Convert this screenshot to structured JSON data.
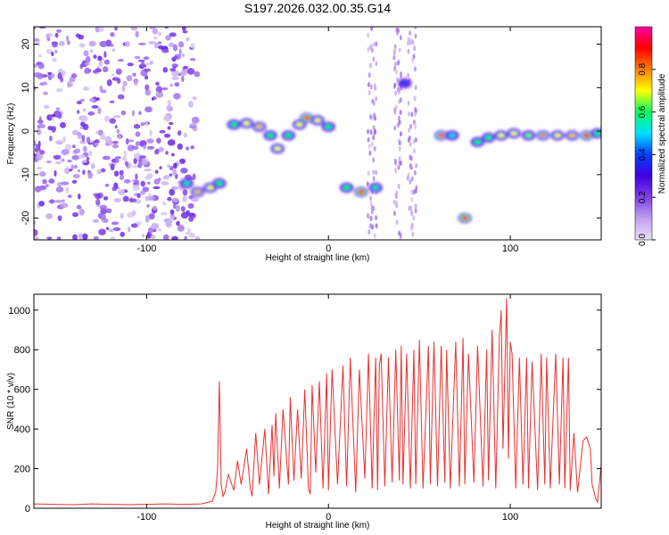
{
  "figure": {
    "title": "S197.2026.032.00.35.G14"
  },
  "chart_data": [
    {
      "type": "heatmap",
      "title": "S197.2026.032.00.35.G14",
      "xlabel": "Height of straight line (km)",
      "ylabel": "Frequency (Hz)",
      "xlim": [
        -162,
        150
      ],
      "ylim": [
        -25,
        24
      ],
      "x_ticks": [
        -100,
        0,
        100
      ],
      "y_ticks": [
        20,
        10,
        0,
        -10,
        -20
      ],
      "colorbar": {
        "label": "Normalized spectral amplitude",
        "range": [
          0,
          1
        ],
        "ticks": [
          "0.0",
          "0.2",
          "0.4",
          "0.6",
          "0.8"
        ],
        "colors": [
          "#e8e0f8",
          "#c0a0f0",
          "#8040e8",
          "#4000e0",
          "#0040ff",
          "#00e0ff",
          "#00ff60",
          "#ffff00",
          "#ff8000",
          "#ff0000",
          "#ff00a0"
        ]
      },
      "noise_region_x": [
        -162,
        -72
      ],
      "ridge": [
        [
          -78,
          -12,
          0.55
        ],
        [
          -72,
          -14,
          0.75
        ],
        [
          -65,
          -13,
          0.7
        ],
        [
          -60,
          -12,
          0.6
        ],
        [
          -52,
          1.5,
          0.6
        ],
        [
          -45,
          1.8,
          0.7
        ],
        [
          -38,
          1,
          0.75
        ],
        [
          -32,
          -1,
          0.6
        ],
        [
          -28,
          -4,
          0.7
        ],
        [
          -22,
          -1,
          0.6
        ],
        [
          -16,
          1.5,
          0.7
        ],
        [
          -12,
          3,
          0.95
        ],
        [
          -6,
          2.5,
          0.7
        ],
        [
          0,
          1,
          0.6
        ],
        [
          10,
          -13,
          0.6
        ],
        [
          18,
          -14,
          0.95
        ],
        [
          26,
          -13,
          0.55
        ],
        [
          42,
          11,
          0.4
        ],
        [
          62,
          -1,
          0.85
        ],
        [
          68,
          -1,
          0.5
        ],
        [
          75,
          -20,
          0.95
        ],
        [
          82,
          -2.5,
          0.6
        ],
        [
          88,
          -1.5,
          0.6
        ],
        [
          95,
          -1,
          0.7
        ],
        [
          102,
          -0.5,
          0.7
        ],
        [
          110,
          -1,
          0.65
        ],
        [
          118,
          -1,
          0.8
        ],
        [
          126,
          -1,
          0.7
        ],
        [
          134,
          -1,
          0.75
        ],
        [
          142,
          -1,
          0.9
        ],
        [
          148,
          -0.5,
          0.6
        ]
      ]
    },
    {
      "type": "line",
      "xlabel": "Height of straight line (km)",
      "ylabel": "SNR (10 * v/v)",
      "xlim": [
        -162,
        150
      ],
      "ylim": [
        0,
        1080
      ],
      "x_ticks": [
        -100,
        0,
        100
      ],
      "y_ticks": [
        0,
        200,
        400,
        600,
        800,
        1000
      ],
      "line_color": "#e83030",
      "series": [
        {
          "x": [
            -162,
            -150,
            -140,
            -130,
            -120,
            -110,
            -100,
            -90,
            -80,
            -70,
            -64,
            -62,
            -61,
            -60,
            -59,
            -58,
            -57,
            -55,
            -52,
            -50,
            -48,
            -45,
            -43,
            -42,
            -40,
            -38,
            -35,
            -33,
            -31,
            -30,
            -29,
            -27,
            -25,
            -22,
            -21,
            -19,
            -17,
            -15,
            -13,
            -11,
            -10,
            -9,
            -7,
            -5,
            -3,
            -1,
            0,
            2,
            5,
            8,
            10,
            12,
            15,
            17,
            20,
            22,
            24,
            26,
            27,
            28,
            29,
            31,
            33,
            35,
            37,
            39,
            40,
            41,
            43,
            45,
            47,
            48,
            50,
            52,
            55,
            56,
            58,
            60,
            62,
            64,
            65,
            67,
            70,
            72,
            74,
            75,
            77,
            80,
            82,
            85,
            87,
            88,
            90,
            92,
            94,
            95,
            96,
            97,
            98,
            99,
            100,
            101,
            103,
            105,
            107,
            109,
            110,
            112,
            115,
            117,
            119,
            120,
            122,
            125,
            127,
            129,
            130,
            132,
            133,
            135,
            137,
            140,
            142,
            144,
            145,
            147,
            148,
            150
          ],
          "y": [
            22,
            20,
            18,
            22,
            20,
            18,
            20,
            22,
            20,
            22,
            35,
            80,
            200,
            640,
            120,
            60,
            80,
            170,
            90,
            240,
            120,
            300,
            100,
            60,
            380,
            120,
            400,
            70,
            420,
            160,
            480,
            100,
            500,
            120,
            560,
            140,
            500,
            150,
            600,
            100,
            70,
            620,
            180,
            640,
            100,
            680,
            90,
            700,
            120,
            720,
            110,
            760,
            80,
            700,
            150,
            780,
            100,
            760,
            90,
            720,
            780,
            110,
            760,
            130,
            800,
            140,
            820,
            120,
            780,
            100,
            800,
            120,
            850,
            100,
            820,
            120,
            840,
            110,
            820,
            130,
            800,
            100,
            840,
            110,
            860,
            120,
            780,
            130,
            820,
            110,
            800,
            140,
            900,
            100,
            860,
            1000,
            300,
            700,
            1060,
            250,
            840,
            780,
            100,
            760,
            120,
            760,
            100,
            740,
            90,
            780,
            120,
            760,
            100,
            780,
            120,
            760,
            100,
            760,
            90,
            380,
            80,
            340,
            360,
            300,
            120,
            50,
            30,
            220
          ]
        }
      ]
    }
  ]
}
